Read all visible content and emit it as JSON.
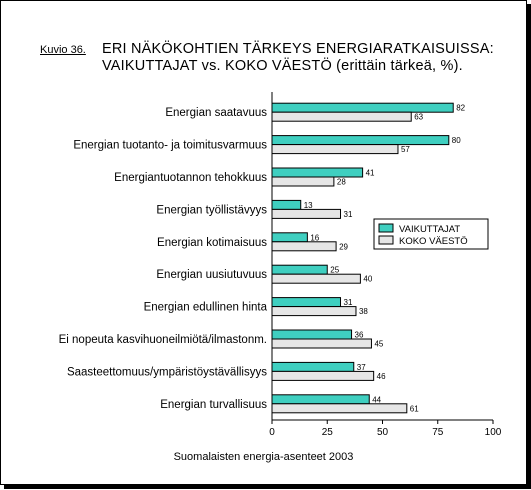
{
  "figure_label": "Kuvio 36.",
  "source_note": "Suomalaisten energia-asenteet 2003",
  "colors": {
    "series_a": "#3fcfc0",
    "series_b": "#e6e6e6",
    "stroke": "#000000"
  },
  "chart_data": {
    "type": "bar",
    "orientation": "horizontal",
    "title_line1": "ERI NÄKÖKOHTIEN TÄRKEYS ENERGIARATKAISUISSA:",
    "title_line2": "VAIKUTTAJAT vs. KOKO VÄESTÖ (erittäin tärkeä, %).",
    "categories": [
      "Energian saatavuus",
      "Energian tuotanto- ja toimitusvarmuus",
      "Energiantuotannon tehokkuus",
      "Energian työllistävyys",
      "Energian kotimaisuus",
      "Energian uusiutuvuus",
      "Energian edullinen hinta",
      "Ei nopeuta kasvihuoneilmiötä/ilmastonm.",
      "Saasteettomuus/ympäristöystävällisyys",
      "Energian turvallisuus"
    ],
    "series": [
      {
        "name": "VAIKUTTAJAT",
        "values": [
          82,
          80,
          41,
          13,
          16,
          25,
          31,
          36,
          37,
          44
        ]
      },
      {
        "name": "KOKO VÄESTÖ",
        "values": [
          63,
          57,
          28,
          31,
          29,
          40,
          38,
          45,
          46,
          61
        ]
      }
    ],
    "xlim": [
      0,
      100
    ],
    "xticks": [
      0,
      25,
      50,
      75,
      100
    ],
    "grid": false,
    "legend_position": "right"
  }
}
